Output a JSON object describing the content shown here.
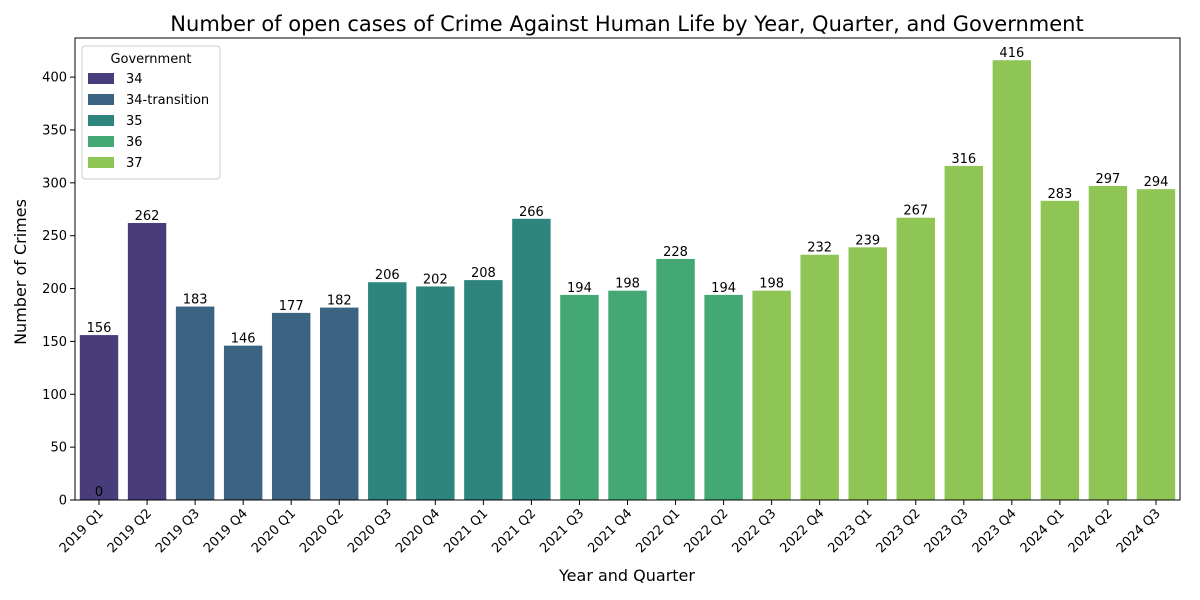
{
  "chart_data": {
    "type": "bar",
    "title": "Number of open cases of Crime Against Human Life by Year, Quarter, and Government",
    "xlabel": "Year and Quarter",
    "ylabel": "Number of Crimes",
    "ylim": [
      0,
      437
    ],
    "yticks": [
      0,
      50,
      100,
      150,
      200,
      250,
      300,
      350,
      400
    ],
    "grid": false,
    "legend": {
      "title": "Government",
      "placement": "top-left",
      "entries": [
        {
          "name": "34",
          "color": "#483d7a"
        },
        {
          "name": "34-transition",
          "color": "#3b6482"
        },
        {
          "name": "35",
          "color": "#2e857e"
        },
        {
          "name": "36",
          "color": "#44a874"
        },
        {
          "name": "37",
          "color": "#8ec555"
        }
      ]
    },
    "categories": [
      "2019 Q1",
      "2019 Q2",
      "2019 Q3",
      "2019 Q4",
      "2020 Q1",
      "2020 Q2",
      "2020 Q3",
      "2020 Q4",
      "2021 Q1",
      "2021 Q2",
      "2021 Q3",
      "2021 Q4",
      "2022 Q1",
      "2022 Q2",
      "2022 Q3",
      "2022 Q4",
      "2023 Q1",
      "2023 Q2",
      "2023 Q3",
      "2023 Q4",
      "2024 Q1",
      "2024 Q2",
      "2024 Q3"
    ],
    "values": [
      156,
      262,
      183,
      146,
      177,
      182,
      206,
      202,
      208,
      266,
      194,
      198,
      228,
      194,
      198,
      232,
      239,
      267,
      316,
      416,
      283,
      297,
      294
    ],
    "government": [
      "34",
      "34",
      "34-transition",
      "34-transition",
      "34-transition",
      "34-transition",
      "35",
      "35",
      "35",
      "35",
      "36",
      "36",
      "36",
      "36",
      "37",
      "37",
      "37",
      "37",
      "37",
      "37",
      "37",
      "37",
      "37"
    ],
    "extra_labels": [
      {
        "category": "2019 Q1",
        "text": "0"
      }
    ]
  }
}
